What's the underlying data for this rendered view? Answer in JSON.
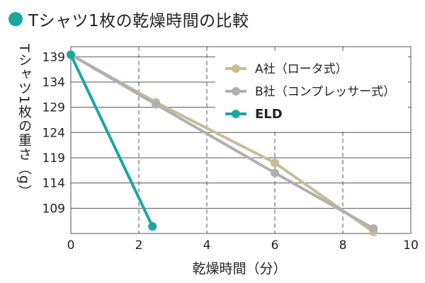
{
  "title": "Tシャツ1枚の乾燥時間の比較",
  "colors": {
    "title_dot": "#1aa6a1",
    "A": "#c9bb98",
    "B": "#b0b0b0",
    "ELD": "#1aa6a1",
    "grid": "#555555"
  },
  "chart_data": {
    "type": "line",
    "title": "Tシャツ1枚の乾燥時間の比較",
    "xlabel": "乾燥時間（分）",
    "ylabel": "Tシャツ1枚の重さ（g）",
    "xlim": [
      0,
      10
    ],
    "ylim": [
      104,
      141
    ],
    "x_ticks": [
      0,
      2,
      4,
      6,
      8,
      10
    ],
    "y_ticks": [
      109,
      114,
      119,
      124,
      129,
      134,
      139
    ],
    "grid": true,
    "legend_position": "top-right",
    "series": [
      {
        "name": "A社（ロータ式）",
        "color": "#c9bb98",
        "bold": false,
        "points": [
          [
            0,
            139.4
          ],
          [
            2.5,
            130.0
          ],
          [
            6,
            118.0
          ],
          [
            8.9,
            104.3
          ]
        ]
      },
      {
        "name": "B社（コンプレッサー式）",
        "color": "#b0b0b0",
        "bold": false,
        "points": [
          [
            0,
            139.4
          ],
          [
            2.5,
            129.6
          ],
          [
            6,
            116.0
          ],
          [
            8.9,
            105.0
          ]
        ]
      },
      {
        "name": "ELD",
        "color": "#1aa6a1",
        "bold": true,
        "points": [
          [
            0,
            139.4
          ],
          [
            2.4,
            105.4
          ]
        ]
      }
    ]
  }
}
